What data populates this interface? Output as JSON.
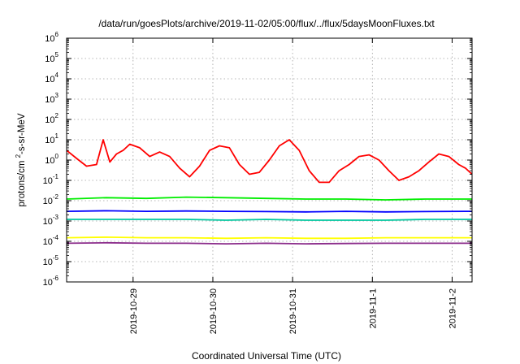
{
  "chart_data": {
    "type": "line",
    "title": "/data/run/goesPlots/archive/2019-11-02/05:00/flux/../flux/5daysMoonFluxes.txt",
    "xlabel": "Coordinated Universal Time (UTC)",
    "ylabel": "protons/cm²-s-sr-MeV",
    "y_scale": "log",
    "ylim": [
      1e-06,
      1000000.0
    ],
    "y_ticks": [
      {
        "value": 1e-06,
        "base": "10",
        "exp": "-6"
      },
      {
        "value": 1e-05,
        "base": "10",
        "exp": "-5"
      },
      {
        "value": 0.0001,
        "base": "10",
        "exp": "-4"
      },
      {
        "value": 0.001,
        "base": "10",
        "exp": "-3"
      },
      {
        "value": 0.01,
        "base": "10",
        "exp": "-2"
      },
      {
        "value": 0.1,
        "base": "10",
        "exp": "-1"
      },
      {
        "value": 1,
        "base": "10",
        "exp": "0"
      },
      {
        "value": 10,
        "base": "10",
        "exp": "1"
      },
      {
        "value": 100,
        "base": "10",
        "exp": "2"
      },
      {
        "value": 1000,
        "base": "10",
        "exp": "3"
      },
      {
        "value": 10000,
        "base": "10",
        "exp": "4"
      },
      {
        "value": 100000,
        "base": "10",
        "exp": "5"
      },
      {
        "value": 1000000,
        "base": "10",
        "exp": "6"
      }
    ],
    "xlim": [
      "2019-10-28 04:00",
      "2019-11-02 06:00"
    ],
    "x_ticks": [
      "2019-10-29",
      "2019-10-30",
      "2019-10-31",
      "2019-11-1",
      "2019-11-2"
    ],
    "x_tick_dates": [
      "2019-10-29 00:00",
      "2019-10-30 00:00",
      "2019-10-31 00:00",
      "2019-11-01 00:00",
      "2019-11-02 00:00"
    ],
    "grid": true,
    "series": [
      {
        "color": "#ff0000",
        "x": [
          "2019-10-28 04:00",
          "2019-10-28 07:00",
          "2019-10-28 10:00",
          "2019-10-28 13:00",
          "2019-10-28 15:00",
          "2019-10-28 17:00",
          "2019-10-28 19:00",
          "2019-10-28 21:00",
          "2019-10-28 23:00",
          "2019-10-29 02:00",
          "2019-10-29 05:00",
          "2019-10-29 08:00",
          "2019-10-29 11:00",
          "2019-10-29 14:00",
          "2019-10-29 17:00",
          "2019-10-29 20:00",
          "2019-10-29 23:00",
          "2019-10-30 02:00",
          "2019-10-30 05:00",
          "2019-10-30 08:00",
          "2019-10-30 11:00",
          "2019-10-30 14:00",
          "2019-10-30 17:00",
          "2019-10-30 20:00",
          "2019-10-30 23:00",
          "2019-10-31 02:00",
          "2019-10-31 05:00",
          "2019-10-31 08:00",
          "2019-10-31 11:00",
          "2019-10-31 14:00",
          "2019-10-31 17:00",
          "2019-10-31 20:00",
          "2019-10-31 23:00",
          "2019-11-01 02:00",
          "2019-11-01 05:00",
          "2019-11-01 08:00",
          "2019-11-01 11:00",
          "2019-11-01 14:00",
          "2019-11-01 17:00",
          "2019-11-01 20:00",
          "2019-11-01 23:00",
          "2019-11-02 02:00",
          "2019-11-02 04:00",
          "2019-11-02 06:00"
        ],
        "values": [
          3,
          1.2,
          0.5,
          0.6,
          10,
          0.8,
          2,
          3,
          6,
          4,
          1.5,
          2.5,
          1.5,
          0.4,
          0.15,
          0.5,
          3,
          5,
          4,
          0.6,
          0.2,
          0.25,
          1,
          5,
          10,
          3,
          0.3,
          0.08,
          0.08,
          0.3,
          0.6,
          1.5,
          1.8,
          1,
          0.3,
          0.1,
          0.15,
          0.3,
          0.8,
          2,
          1.5,
          0.6,
          0.4,
          0.2
        ]
      },
      {
        "color": "#00ee00",
        "x": [
          "2019-10-28 04:00",
          "2019-10-28 16:00",
          "2019-10-29 04:00",
          "2019-10-29 16:00",
          "2019-10-30 04:00",
          "2019-10-30 16:00",
          "2019-10-31 04:00",
          "2019-10-31 16:00",
          "2019-11-01 04:00",
          "2019-11-01 16:00",
          "2019-11-02 04:00",
          "2019-11-02 06:00"
        ],
        "values": [
          0.012,
          0.014,
          0.013,
          0.015,
          0.014,
          0.013,
          0.012,
          0.012,
          0.011,
          0.012,
          0.012,
          0.012
        ]
      },
      {
        "color": "#0000ff",
        "x": [
          "2019-10-28 04:00",
          "2019-10-28 16:00",
          "2019-10-29 04:00",
          "2019-10-29 16:00",
          "2019-10-30 04:00",
          "2019-10-30 16:00",
          "2019-10-31 04:00",
          "2019-10-31 16:00",
          "2019-11-01 04:00",
          "2019-11-01 16:00",
          "2019-11-02 04:00",
          "2019-11-02 06:00"
        ],
        "values": [
          0.003,
          0.0032,
          0.003,
          0.0031,
          0.003,
          0.0029,
          0.0028,
          0.003,
          0.0028,
          0.0029,
          0.003,
          0.003
        ]
      },
      {
        "color": "#00c8a0",
        "x": [
          "2019-10-28 04:00",
          "2019-10-28 16:00",
          "2019-10-29 04:00",
          "2019-10-29 16:00",
          "2019-10-30 04:00",
          "2019-10-30 16:00",
          "2019-10-31 04:00",
          "2019-10-31 16:00",
          "2019-11-01 04:00",
          "2019-11-01 16:00",
          "2019-11-02 04:00",
          "2019-11-02 06:00"
        ],
        "values": [
          0.0012,
          0.0012,
          0.0012,
          0.0012,
          0.0011,
          0.0012,
          0.0011,
          0.0011,
          0.0011,
          0.0012,
          0.0012,
          0.0012
        ]
      },
      {
        "color": "#ffff00",
        "x": [
          "2019-10-28 04:00",
          "2019-10-28 16:00",
          "2019-10-29 04:00",
          "2019-10-29 16:00",
          "2019-10-30 04:00",
          "2019-10-30 16:00",
          "2019-10-31 04:00",
          "2019-10-31 16:00",
          "2019-11-01 04:00",
          "2019-11-01 16:00",
          "2019-11-02 04:00",
          "2019-11-02 06:00"
        ],
        "values": [
          0.00015,
          0.00016,
          0.00015,
          0.00015,
          0.00014,
          0.00015,
          0.00014,
          0.00014,
          0.00015,
          0.00015,
          0.00015,
          0.00015
        ]
      },
      {
        "color": "#8b2c8b",
        "x": [
          "2019-10-28 04:00",
          "2019-10-28 16:00",
          "2019-10-29 04:00",
          "2019-10-29 16:00",
          "2019-10-30 04:00",
          "2019-10-30 16:00",
          "2019-10-31 04:00",
          "2019-10-31 16:00",
          "2019-11-01 04:00",
          "2019-11-01 16:00",
          "2019-11-02 04:00",
          "2019-11-02 06:00"
        ],
        "values": [
          8e-05,
          8.5e-05,
          8e-05,
          8e-05,
          7.5e-05,
          8e-05,
          7.5e-05,
          7.8e-05,
          8e-05,
          8e-05,
          8e-05,
          8e-05
        ]
      }
    ]
  }
}
